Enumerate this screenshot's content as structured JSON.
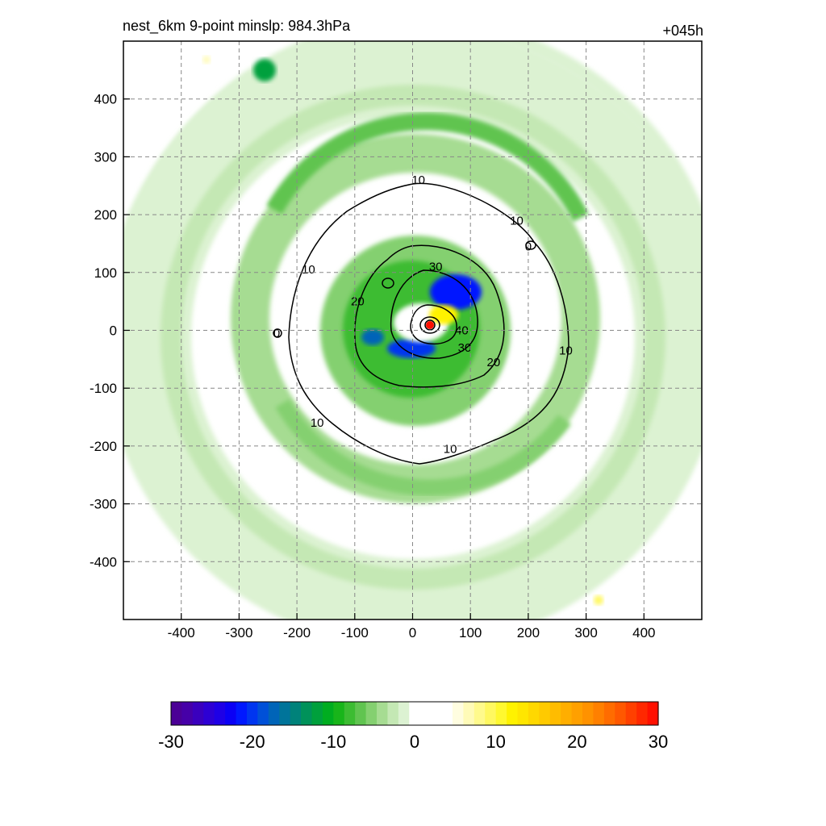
{
  "chart_data": {
    "type": "heatmap",
    "title_left": "nest_6km  9-point minslp: 984.3hPa",
    "title_right": "+045h",
    "xlim": [
      -500,
      500
    ],
    "ylim": [
      -500,
      500
    ],
    "x_ticks": [
      -400,
      -300,
      -200,
      -100,
      0,
      100,
      200,
      300,
      400
    ],
    "y_ticks": [
      400,
      300,
      200,
      100,
      0,
      -100,
      -200,
      -300,
      -400
    ],
    "x_tick_labels": [
      "-400",
      "-300",
      "-200",
      "-100",
      "0",
      "100",
      "200",
      "300",
      "400"
    ],
    "y_tick_labels": [
      "400",
      "300",
      "200",
      "100",
      "0",
      "-100",
      "-200",
      "-300",
      "-400"
    ],
    "grid": "dashed",
    "colorbar": {
      "range": [
        -30,
        30
      ],
      "ticks": [
        "-30",
        "-20",
        "-10",
        "0",
        "10",
        "20",
        "30"
      ],
      "colors": [
        "#4b0096",
        "#4600a8",
        "#3a00be",
        "#2d00d4",
        "#1e00e6",
        "#0a00f5",
        "#0018ff",
        "#0035f0",
        "#0050d8",
        "#0064b8",
        "#00749a",
        "#00827a",
        "#00925a",
        "#00a03c",
        "#00ad20",
        "#18b51a",
        "#3cbc32",
        "#60c450",
        "#84d070",
        "#a6dc92",
        "#c4e8b4",
        "#dcf2d2",
        "#ffffff",
        "#ffffff",
        "#ffffff",
        "#ffffff",
        "#fffde0",
        "#fffbb8",
        "#fffa8c",
        "#fff860",
        "#fff830",
        "#fff200",
        "#ffe600",
        "#ffd800",
        "#ffca00",
        "#ffbc00",
        "#ffae00",
        "#ffa000",
        "#ff9200",
        "#ff8000",
        "#ff6c00",
        "#ff5800",
        "#ff4000",
        "#ff2800",
        "#ff1000"
      ]
    },
    "contour_labels": [
      {
        "text": "10",
        "x": 10,
        "y": 260
      },
      {
        "text": "10",
        "x": 180,
        "y": 190
      },
      {
        "text": "10",
        "x": -180,
        "y": 105
      },
      {
        "text": "0",
        "x": 200,
        "y": 145
      },
      {
        "text": "0",
        "x": -235,
        "y": -5
      },
      {
        "text": "10",
        "x": 265,
        "y": -35
      },
      {
        "text": "10",
        "x": -165,
        "y": -160
      },
      {
        "text": "10",
        "x": 65,
        "y": -205
      },
      {
        "text": "20",
        "x": -95,
        "y": 50
      },
      {
        "text": "20",
        "x": 140,
        "y": -55
      },
      {
        "text": "30",
        "x": 40,
        "y": 110
      },
      {
        "text": "30",
        "x": 90,
        "y": -30
      },
      {
        "text": "40",
        "x": 85,
        "y": 0
      }
    ]
  }
}
